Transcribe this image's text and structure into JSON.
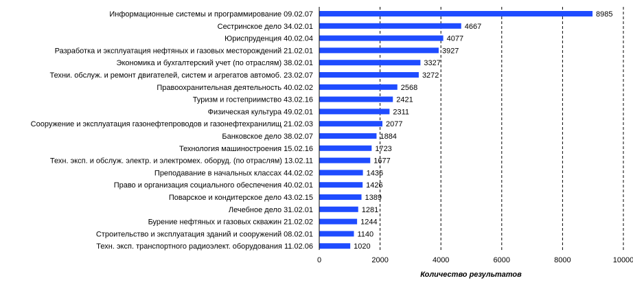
{
  "chart_data": {
    "type": "bar",
    "orientation": "horizontal",
    "title": "",
    "xlabel": "Количество  результатов",
    "ylabel": "",
    "xlim": [
      0,
      10000
    ],
    "xticks": [
      0,
      2000,
      4000,
      6000,
      8000,
      10000
    ],
    "gridlines": "vertical, dashed",
    "bar_color": "#1f4cff",
    "legend": "none",
    "categories": [
      "Информационные системы и программирование 09.02.07",
      "Сестринское дело 34.02.01",
      "Юриспруденция 40.02.04",
      "Разработка и эксплуатация нефтяных и газовых месторождений 21.02.01",
      "Экономика и бухгалтерский учет  (по отраслям) 38.02.01",
      "Техни. обслуж. и ремонт двигателей, систем и агрегатов автомоб. 23.02.07",
      "Правоохранительная деятельность 40.02.02",
      "Туризм и гостеприимство 43.02.16",
      "Физическая культура 49.02.01",
      "Сооружение и эксплуатация газонефтепроводов и газонефтехранилищ 21.02.03",
      "Банковское дело 38.02.07",
      "Технология машиностроения 15.02.16",
      "Техн. эксп. и обслуж. электр. и электромех. оборуд. (по отраслям) 13.02.11",
      "Преподавание в начальных классах 44.02.02",
      "Право и организация социального обеспечения 40.02.01",
      "Поварское и кондитерское дело 43.02.15",
      "Лечебное дело 31.02.01",
      "Бурение нефтяных и газовых скважин 21.02.02",
      "Строительство и эксплуатация зданий и сооружений 08.02.01",
      "Техн. эксп. транспортного радиоэлект. оборудования 11.02.06"
    ],
    "values": [
      8985,
      4667,
      4077,
      3927,
      3327,
      3272,
      2568,
      2421,
      2311,
      2077,
      1884,
      1723,
      1677,
      1436,
      1426,
      1389,
      1281,
      1244,
      1140,
      1020
    ]
  }
}
